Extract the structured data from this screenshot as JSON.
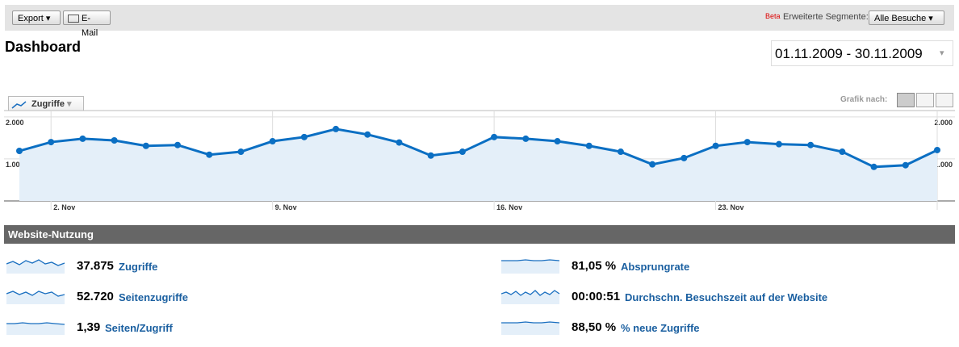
{
  "toolbar": {
    "export": "Export",
    "email": "E-Mail",
    "beta": "Beta",
    "segments_label": "Erweiterte Segmente:",
    "segment": "Alle Besuche"
  },
  "header": {
    "title": "Dashboard",
    "date_range": "01.11.2009 - 30.11.2009"
  },
  "graph_controls": {
    "metric_tab": "Zugriffe",
    "graph_by": "Grafik nach:"
  },
  "chart_data": {
    "type": "line",
    "categories": [
      null,
      "2. Nov",
      null,
      null,
      null,
      null,
      null,
      null,
      "9. Nov",
      null,
      null,
      null,
      null,
      null,
      null,
      "16. Nov",
      null,
      null,
      null,
      null,
      null,
      null,
      "23. Nov",
      null,
      null,
      null,
      null,
      null,
      null,
      null
    ],
    "series": [
      {
        "name": "Zugriffe",
        "color": "#0b6fc3",
        "values": [
          1190,
          1400,
          1480,
          1440,
          1310,
          1330,
          1100,
          1170,
          1420,
          1520,
          1710,
          1580,
          1390,
          1080,
          1170,
          1520,
          1480,
          1420,
          1310,
          1170,
          870,
          1020,
          1310,
          1400,
          1350,
          1330,
          1170,
          810,
          850,
          1210
        ]
      }
    ],
    "ylim": [
      0,
      2150
    ],
    "yticks": [
      {
        "value": 1000,
        "label": "1.000"
      },
      {
        "value": 2000,
        "label": "2.000"
      }
    ],
    "grid": true
  },
  "section": {
    "title": "Website-Nutzung",
    "metrics": [
      {
        "value": "37.875",
        "label": "Zugriffe"
      },
      {
        "value": "52.720",
        "label": "Seitenzugriffe"
      },
      {
        "value": "1,39",
        "label": "Seiten/Zugriff"
      },
      {
        "value": "81,05 %",
        "label": "Absprungrate"
      },
      {
        "value": "00:00:51",
        "label": "Durchschn. Besuchszeit auf der Website"
      },
      {
        "value": "88,50 %",
        "label": "% neue Zugriffe"
      }
    ]
  }
}
